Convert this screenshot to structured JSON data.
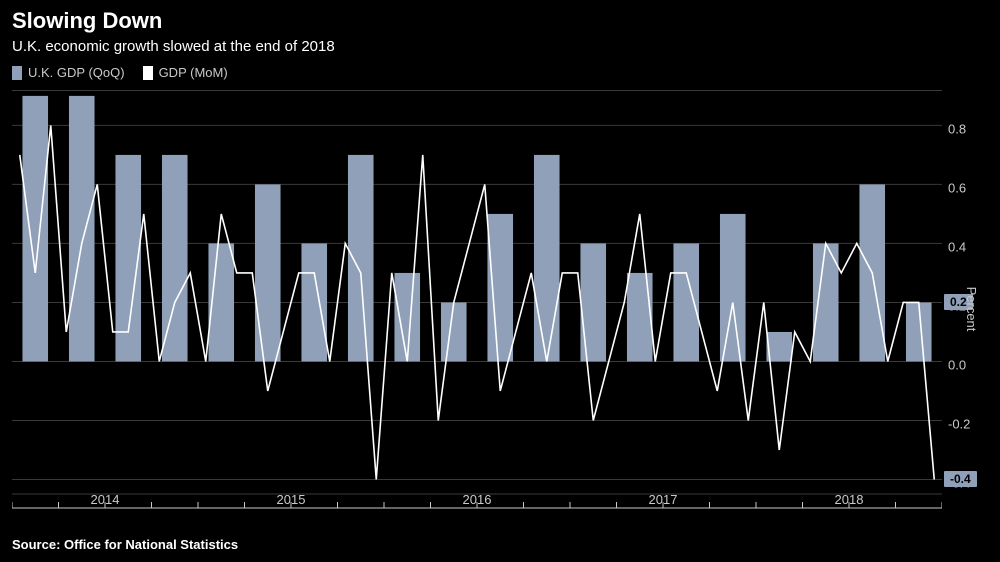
{
  "header": {
    "title": "Slowing Down",
    "subtitle": "U.K. economic growth slowed at the end of 2018"
  },
  "legend": {
    "series1": {
      "label": "U.K. GDP (QoQ)",
      "color": "#8fa0b8"
    },
    "series2": {
      "label": "GDP (MoM)",
      "color": "#ffffff"
    }
  },
  "chart": {
    "type": "bar+line",
    "background_color": "#000000",
    "grid_color": "#3a3a3a",
    "axis_color": "#c9c9c9",
    "bar_color": "#8fa0b8",
    "line_color": "#ffffff",
    "text_color": "#c9c9c9",
    "ylabel": "Percent",
    "ylim": [
      -0.5,
      0.92
    ],
    "yticks": [
      -0.4,
      -0.2,
      0.0,
      0.2,
      0.4,
      0.6,
      0.8
    ],
    "ytick_labels": [
      "-0.4",
      "-0.2",
      "0.0",
      "0.2",
      "0.4",
      "0.6",
      "0.8"
    ],
    "x_years": [
      "2014",
      "2015",
      "2016",
      "2017",
      "2018"
    ],
    "bar_values": [
      0.9,
      0.9,
      0.7,
      0.7,
      0.4,
      0.6,
      0.4,
      0.7,
      0.3,
      0.2,
      0.5,
      0.7,
      0.4,
      0.3,
      0.4,
      0.5,
      0.1,
      0.4,
      0.6,
      0.2
    ],
    "line_values": [
      0.7,
      0.3,
      0.8,
      0.1,
      0.4,
      0.6,
      0.1,
      0.1,
      0.5,
      0.0,
      0.2,
      0.3,
      0.0,
      0.5,
      0.3,
      0.3,
      -0.1,
      0.1,
      0.3,
      0.3,
      0.0,
      0.4,
      0.3,
      -0.4,
      0.3,
      0.0,
      0.7,
      -0.2,
      0.2,
      0.4,
      0.6,
      -0.1,
      0.1,
      0.3,
      0.0,
      0.3,
      0.3,
      -0.2,
      0.0,
      0.2,
      0.5,
      0.0,
      0.3,
      0.3,
      0.1,
      -0.1,
      0.2,
      -0.2,
      0.2,
      -0.3,
      0.1,
      0.0,
      0.4,
      0.3,
      0.4,
      0.3,
      0.0,
      0.2,
      0.2,
      -0.4
    ],
    "callouts": [
      {
        "value": 0.2,
        "label": "0.2"
      },
      {
        "value": -0.4,
        "label": "-0.4"
      }
    ],
    "bar_width_ratio": 0.55,
    "line_width": 1.6
  },
  "footer": {
    "source": "Source: Office for National Statistics"
  }
}
